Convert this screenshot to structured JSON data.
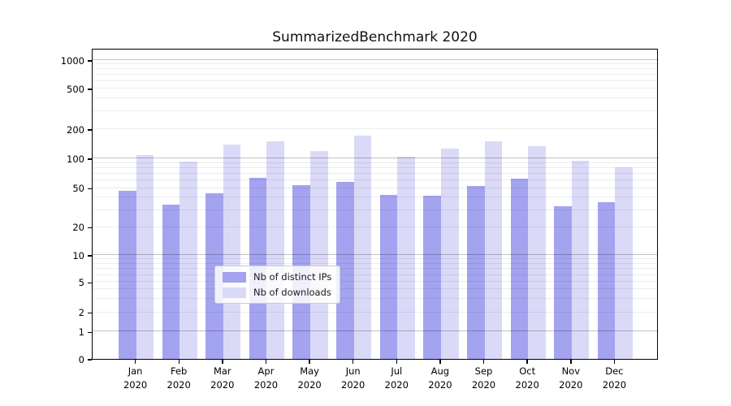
{
  "chart_data": {
    "type": "bar",
    "title": "SummarizedBenchmark 2020",
    "categories": [
      "Jan 2020",
      "Feb 2020",
      "Mar 2020",
      "Apr 2020",
      "May 2020",
      "Jun 2020",
      "Jul 2020",
      "Aug 2020",
      "Sep 2020",
      "Oct 2020",
      "Nov 2020",
      "Dec 2020"
    ],
    "category_line1": [
      "Jan",
      "Feb",
      "Mar",
      "Apr",
      "May",
      "Jun",
      "Jul",
      "Aug",
      "Sep",
      "Oct",
      "Nov",
      "Dec"
    ],
    "category_line2": "2020",
    "series": [
      {
        "name": "Nb of distinct IPs",
        "color": "#a3a3f0",
        "values": [
          47,
          34,
          44,
          64,
          54,
          58,
          43,
          42,
          53,
          63,
          33,
          36
        ]
      },
      {
        "name": "Nb of downloads",
        "color": "#dadaf8",
        "values": [
          109,
          92,
          140,
          149,
          119,
          171,
          104,
          125,
          149,
          134,
          94,
          82
        ]
      }
    ],
    "yscale": "symlog",
    "yticks": [
      0,
      1,
      2,
      5,
      10,
      20,
      50,
      100,
      200,
      500,
      1000
    ],
    "ylim": [
      0,
      1300
    ],
    "grid": true,
    "legend_position": "lower center",
    "xlabel": "",
    "ylabel": ""
  }
}
